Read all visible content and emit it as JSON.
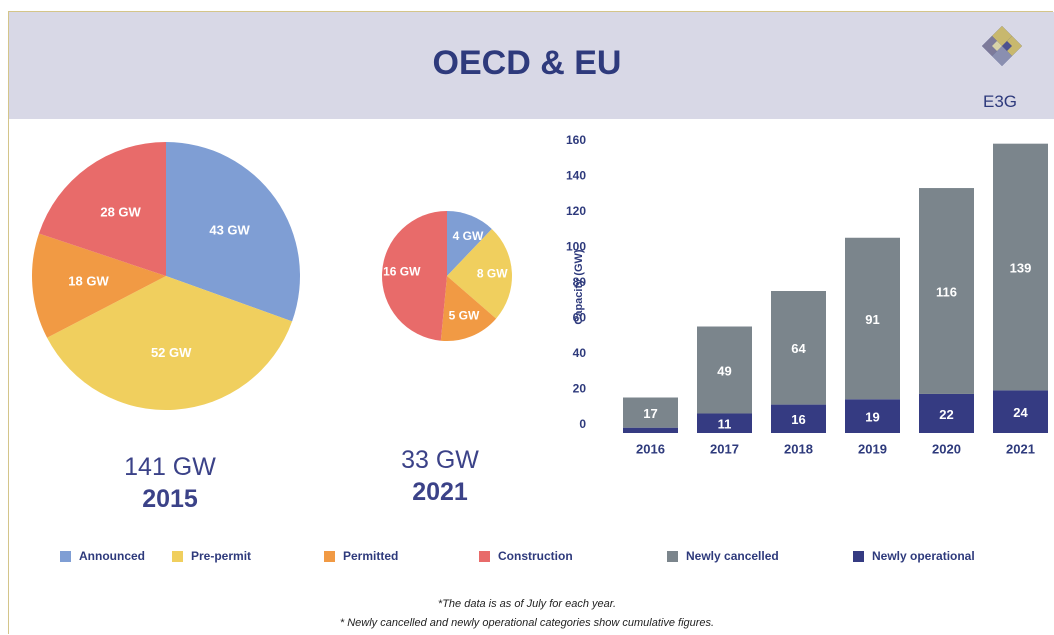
{
  "header": {
    "title": "OECD & EU",
    "logo_text": "E3G"
  },
  "colors": {
    "announced": "#7f9ed4",
    "pre_permit": "#f0cf5e",
    "permitted": "#f19a44",
    "construction": "#e86b6a",
    "newly_cancelled": "#7b858c",
    "newly_operational": "#353b82"
  },
  "chart_data": [
    {
      "type": "pie",
      "id": "pie-2015",
      "total_label": "141 GW",
      "year_label": "2015",
      "slices": [
        {
          "name": "Announced",
          "label": "43 GW",
          "value": 43,
          "color_key": "announced"
        },
        {
          "name": "Pre-permit",
          "label": "52 GW",
          "value": 52,
          "color_key": "pre_permit"
        },
        {
          "name": "Permitted",
          "label": "18 GW",
          "value": 18,
          "color_key": "permitted"
        },
        {
          "name": "Construction",
          "label": "28 GW",
          "value": 28,
          "color_key": "construction"
        }
      ]
    },
    {
      "type": "pie",
      "id": "pie-2021",
      "total_label": "33 GW",
      "year_label": "2021",
      "slices": [
        {
          "name": "Announced",
          "label": "4 GW",
          "value": 4,
          "color_key": "announced"
        },
        {
          "name": "Pre-permit",
          "label": "8 GW",
          "value": 8,
          "color_key": "pre_permit"
        },
        {
          "name": "Permitted",
          "label": "5 GW",
          "value": 5,
          "color_key": "permitted"
        },
        {
          "name": "Construction",
          "label": "16 GW",
          "value": 16,
          "color_key": "construction"
        }
      ]
    },
    {
      "type": "bar",
      "id": "stacked-bars",
      "ylabel": "Capacity (GW)",
      "ylim": [
        0,
        160
      ],
      "yticks": [
        0,
        20,
        40,
        60,
        80,
        100,
        120,
        140,
        160
      ],
      "categories": [
        "2016",
        "2017",
        "2018",
        "2019",
        "2020",
        "2021"
      ],
      "series": [
        {
          "name": "Newly operational",
          "color_key": "newly_operational",
          "values": [
            3,
            11,
            16,
            19,
            22,
            24
          ],
          "labels": [
            "",
            "11",
            "16",
            "19",
            "22",
            "24"
          ]
        },
        {
          "name": "Newly cancelled",
          "color_key": "newly_cancelled",
          "values": [
            17,
            49,
            64,
            91,
            116,
            139
          ],
          "labels": [
            "17",
            "49",
            "64",
            "91",
            "116",
            "139"
          ]
        }
      ]
    }
  ],
  "legend": [
    {
      "label": "Announced",
      "color_key": "announced"
    },
    {
      "label": "Pre-permit",
      "color_key": "pre_permit"
    },
    {
      "label": "Permitted",
      "color_key": "permitted"
    },
    {
      "label": "Construction",
      "color_key": "construction"
    },
    {
      "label": "Newly cancelled",
      "color_key": "newly_cancelled"
    },
    {
      "label": "Newly operational",
      "color_key": "newly_operational"
    }
  ],
  "notes": {
    "line1": "*The data is as of July for each year.",
    "line2": "* Newly cancelled and newly operational categories show cumulative figures."
  }
}
